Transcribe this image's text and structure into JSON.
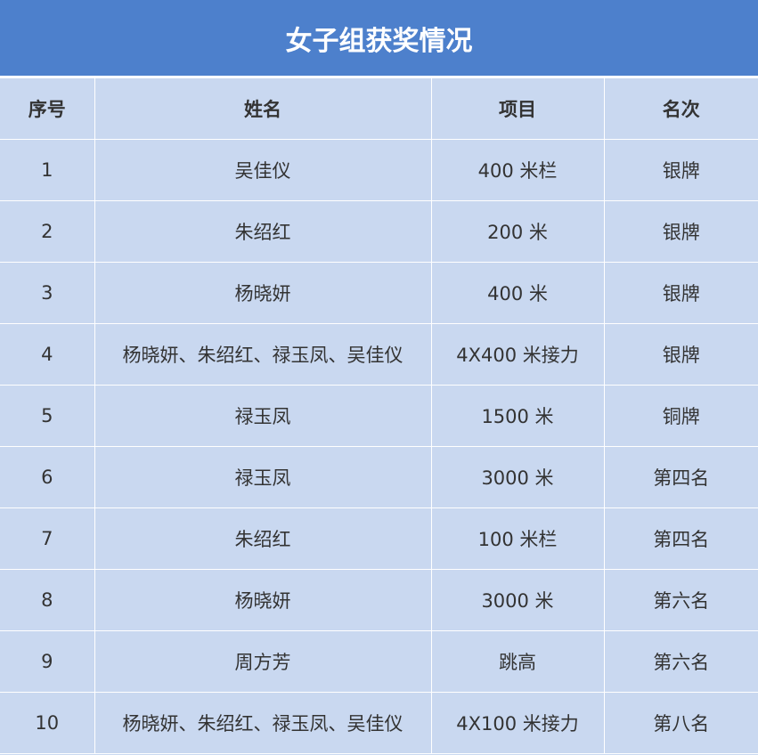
{
  "title": "女子组获奖情况",
  "headers": [
    "序号",
    "姓名",
    "项目",
    "名次"
  ],
  "rows": [
    [
      "1",
      "吴佳仪",
      "400 米栏",
      "银牌"
    ],
    [
      "2",
      "朱绍红",
      "200 米",
      "银牌"
    ],
    [
      "3",
      "杨晓妍",
      "400 米",
      "银牌"
    ],
    [
      "4",
      "杨晓妍、朱绍红、禄玉凤、吴佳仪",
      "4X400 米接力",
      "银牌"
    ],
    [
      "5",
      "禄玉凤",
      "1500 米",
      "铜牌"
    ],
    [
      "6",
      "禄玉凤",
      "3000 米",
      "第四名"
    ],
    [
      "7",
      "朱绍红",
      "100 米栏",
      "第四名"
    ],
    [
      "8",
      "杨晓妍",
      "3000 米",
      "第六名"
    ],
    [
      "9",
      "周方芳",
      "跳高",
      "第六名"
    ],
    [
      "10",
      "杨晓妍、朱绍红、禄玉凤、吴佳仪",
      "4X100 米接力",
      "第八名"
    ]
  ],
  "colors": {
    "title_bg": "#4d80cc",
    "table_bg": "#c9d8f0"
  }
}
